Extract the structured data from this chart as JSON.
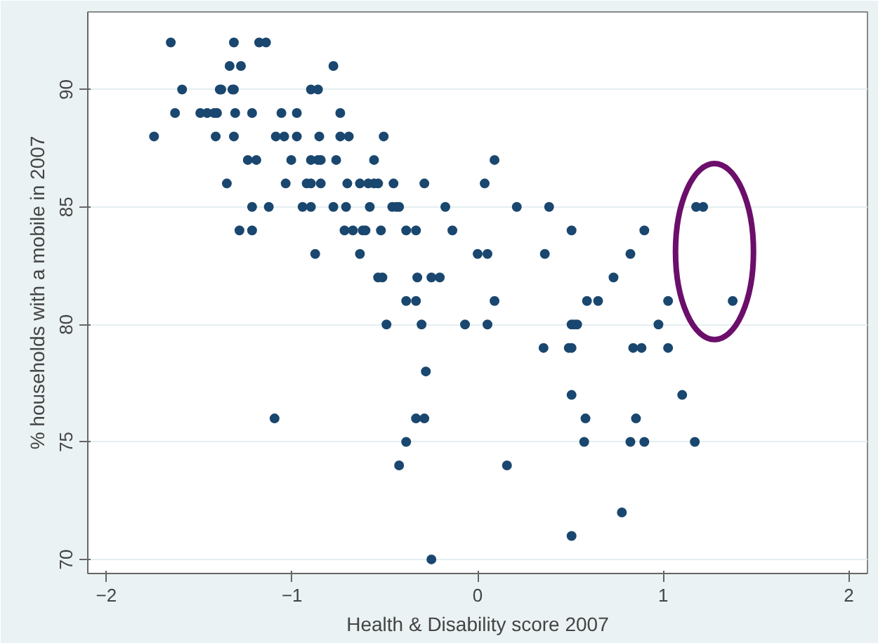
{
  "chart_data": {
    "type": "scatter",
    "xlabel": "Health & Disability score 2007",
    "ylabel": "% households with a mobile in 2007",
    "xlim": [
      -2.1,
      2.1
    ],
    "ylim": [
      69.4,
      93.3
    ],
    "xticks": [
      -2,
      -1,
      0,
      1,
      2
    ],
    "yticks": [
      70,
      75,
      80,
      85,
      90
    ],
    "grid": "y",
    "marker": "circle",
    "series": [
      {
        "color": "#1a476f",
        "x": [
          -1.653,
          -1.313,
          -1.177,
          -1.14,
          -1.336,
          -1.275,
          -0.777,
          -1.592,
          -1.389,
          -1.381,
          -1.321,
          -1.313,
          -0.898,
          -0.86,
          -1.63,
          -1.494,
          -1.457,
          -1.419,
          -1.404,
          -1.306,
          -1.215,
          -1.057,
          -0.974,
          -0.74,
          -1.743,
          -1.411,
          -1.313,
          -1.087,
          -1.042,
          -0.974,
          -0.853,
          -0.74,
          -0.694,
          -0.506,
          -1.238,
          -1.192,
          -1.004,
          -0.898,
          -0.86,
          -0.845,
          -0.762,
          -0.558,
          0.091,
          -1.351,
          -1.034,
          -0.921,
          -0.898,
          -0.845,
          -0.702,
          -0.634,
          -0.589,
          -0.558,
          -0.536,
          -0.453,
          -0.287,
          0.038,
          -1.215,
          -1.125,
          -0.943,
          -0.898,
          -0.777,
          -0.709,
          -0.581,
          -0.46,
          -0.438,
          -0.423,
          -0.174,
          0.211,
          0.385,
          1.177,
          1.215,
          -1.283,
          -1.215,
          -0.717,
          -0.672,
          -0.619,
          -0.604,
          -0.521,
          -0.385,
          -0.332,
          -0.136,
          0.506,
          0.898,
          -0.875,
          -0.634,
          0.0,
          0.053,
          0.362,
          0.823,
          -0.536,
          -0.513,
          -0.325,
          -0.249,
          -0.204,
          0.732,
          -0.385,
          -0.332,
          0.091,
          0.589,
          0.649,
          1.026,
          1.374,
          -0.491,
          -0.302,
          -0.068,
          0.053,
          0.506,
          0.521,
          0.536,
          0.974,
          0.355,
          0.491,
          0.506,
          0.838,
          0.883,
          1.026,
          -0.279,
          0.506,
          1.102,
          -1.094,
          -0.332,
          -0.287,
          0.581,
          0.853,
          -0.385,
          0.574,
          0.823,
          0.898,
          1.17,
          -0.423,
          0.158,
          0.777,
          0.506,
          -0.249
        ],
        "values": [
          92,
          92,
          92,
          92,
          91,
          91,
          91,
          90,
          90,
          90,
          90,
          90,
          90,
          90,
          89,
          89,
          89,
          89,
          89,
          89,
          89,
          89,
          89,
          89,
          88,
          88,
          88,
          88,
          88,
          88,
          88,
          88,
          88,
          88,
          87,
          87,
          87,
          87,
          87,
          87,
          87,
          87,
          87,
          86,
          86,
          86,
          86,
          86,
          86,
          86,
          86,
          86,
          86,
          86,
          86,
          86,
          85,
          85,
          85,
          85,
          85,
          85,
          85,
          85,
          85,
          85,
          85,
          85,
          85,
          85,
          85,
          84,
          84,
          84,
          84,
          84,
          84,
          84,
          84,
          84,
          84,
          84,
          84,
          83,
          83,
          83,
          83,
          83,
          83,
          82,
          82,
          82,
          82,
          82,
          82,
          81,
          81,
          81,
          81,
          81,
          81,
          81,
          80,
          80,
          80,
          80,
          80,
          80,
          80,
          80,
          79,
          79,
          79,
          79,
          79,
          79,
          78,
          77,
          77,
          76,
          76,
          76,
          76,
          76,
          75,
          75,
          75,
          75,
          75,
          74,
          74,
          72,
          71,
          70
        ]
      }
    ]
  }
}
